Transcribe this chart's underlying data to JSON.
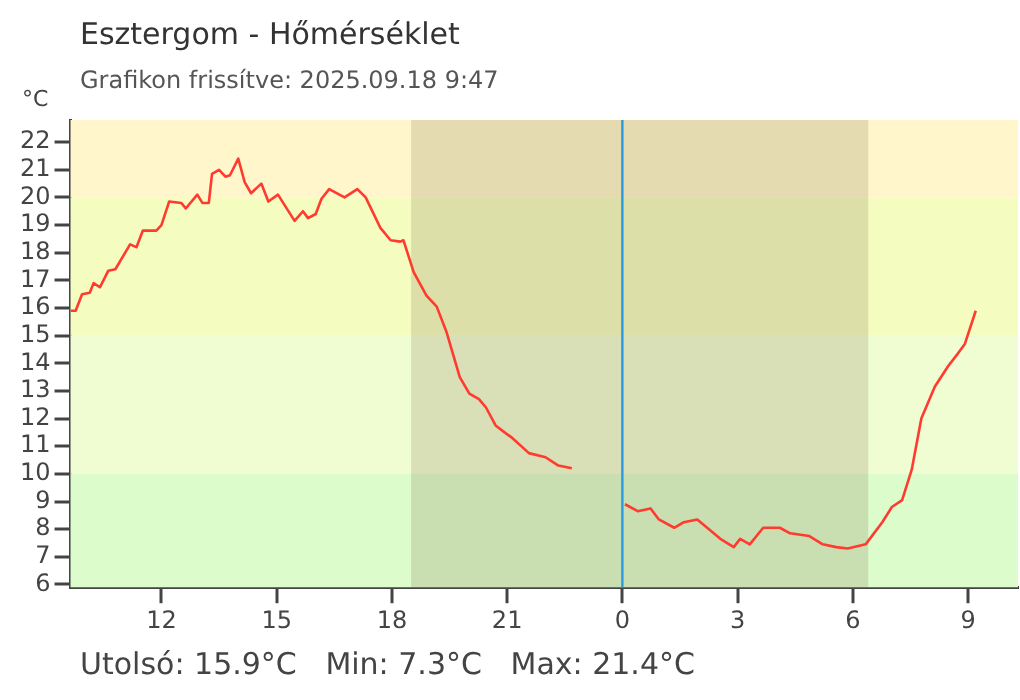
{
  "chart_data": {
    "type": "line",
    "title": "Esztergom - Hőmérséklet",
    "subtitle": "Grafikon frissítve: 2025.09.18 9:47",
    "ylabel": "°C",
    "annotations": [
      "Utolsó: 15.9°C   Min: 7.3°C   Max: 21.4°C"
    ],
    "x": [
      "2025-09-17T09:38",
      "2025-09-17T09:46",
      "2025-09-17T09:56",
      "2025-09-17T10:08",
      "2025-09-17T10:14",
      "2025-09-17T10:24",
      "2025-09-17T10:37",
      "2025-09-17T10:48",
      "2025-09-17T11:11",
      "2025-09-17T11:21",
      "2025-09-17T11:31",
      "2025-09-17T11:52",
      "2025-09-17T12:00",
      "2025-09-17T12:12",
      "2025-09-17T12:31",
      "2025-09-17T12:38",
      "2025-09-17T12:56",
      "2025-09-17T13:04",
      "2025-09-17T13:14",
      "2025-09-17T13:19",
      "2025-09-17T13:30",
      "2025-09-17T13:40",
      "2025-09-17T13:47",
      "2025-09-17T14:00",
      "2025-09-17T14:10",
      "2025-09-17T14:20",
      "2025-09-17T14:36",
      "2025-09-17T14:47",
      "2025-09-17T15:02",
      "2025-09-17T15:28",
      "2025-09-17T15:41",
      "2025-09-17T15:49",
      "2025-09-17T16:01",
      "2025-09-17T16:10",
      "2025-09-17T16:22",
      "2025-09-17T16:46",
      "2025-09-17T17:06",
      "2025-09-17T17:19",
      "2025-09-17T17:42",
      "2025-09-17T17:58",
      "2025-09-17T18:13",
      "2025-09-17T18:18",
      "2025-09-17T18:34",
      "2025-09-17T18:54",
      "2025-09-17T19:10",
      "2025-09-17T19:25",
      "2025-09-17T19:46",
      "2025-09-17T20:01",
      "2025-09-17T20:16",
      "2025-09-17T20:27",
      "2025-09-17T20:42",
      "2025-09-17T20:56",
      "2025-09-17T21:08",
      "2025-09-17T21:34",
      "2025-09-17T22:00",
      "2025-09-17T22:20",
      "2025-09-17T22:41",
      "2025-09-17T23:24",
      "2025-09-18T00:04",
      "2025-09-18T00:24",
      "2025-09-18T00:44",
      "2025-09-18T00:57",
      "2025-09-18T01:21",
      "2025-09-18T01:36",
      "2025-09-18T01:57",
      "2025-09-18T02:33",
      "2025-09-18T02:54",
      "2025-09-18T03:04",
      "2025-09-18T03:19",
      "2025-09-18T03:40",
      "2025-09-18T04:06",
      "2025-09-18T04:22",
      "2025-09-18T04:52",
      "2025-09-18T05:13",
      "2025-09-18T05:34",
      "2025-09-18T05:52",
      "2025-09-18T06:20",
      "2025-09-18T06:46",
      "2025-09-18T07:01",
      "2025-09-18T07:17",
      "2025-09-18T07:32",
      "2025-09-18T07:47",
      "2025-09-18T08:08",
      "2025-09-18T08:29",
      "2025-09-18T08:44",
      "2025-09-18T08:55",
      "2025-09-18T09:12"
    ],
    "series": [
      {
        "color": "#ff3b30",
        "values": [
          15.9,
          15.9,
          16.5,
          16.55,
          16.9,
          16.75,
          17.35,
          17.4,
          18.3,
          18.2,
          18.8,
          18.8,
          19.0,
          19.85,
          19.8,
          19.6,
          20.1,
          19.8,
          19.8,
          20.85,
          21.0,
          20.75,
          20.8,
          21.4,
          20.55,
          20.15,
          20.5,
          19.85,
          20.1,
          19.15,
          19.5,
          19.25,
          19.4,
          19.95,
          20.3,
          20.0,
          20.3,
          20.0,
          18.9,
          18.45,
          18.4,
          18.45,
          17.3,
          16.45,
          16.05,
          15.15,
          13.5,
          12.9,
          12.7,
          12.4,
          11.75,
          11.5,
          11.3,
          10.75,
          10.6,
          10.3,
          10.2,
          null,
          8.9,
          8.65,
          8.75,
          8.35,
          8.05,
          8.25,
          8.35,
          7.65,
          7.35,
          7.65,
          7.45,
          8.05,
          8.05,
          7.85,
          7.75,
          7.45,
          7.35,
          7.3,
          7.45,
          8.25,
          8.8,
          9.05,
          10.15,
          12.0,
          13.15,
          13.9,
          14.35,
          14.7,
          15.9
        ]
      }
    ],
    "xlim": [
      "2025-09-17T09:38",
      "2025-09-18T10:18"
    ],
    "xticks": [
      {
        "value": "2025-09-17T12:00",
        "label": "12"
      },
      {
        "value": "2025-09-17T15:00",
        "label": "15"
      },
      {
        "value": "2025-09-17T18:00",
        "label": "18"
      },
      {
        "value": "2025-09-17T21:00",
        "label": "21"
      },
      {
        "value": "2025-09-18T00:00",
        "label": "0"
      },
      {
        "value": "2025-09-18T03:00",
        "label": "3"
      },
      {
        "value": "2025-09-18T06:00",
        "label": "6"
      },
      {
        "value": "2025-09-18T09:00",
        "label": "9"
      }
    ],
    "ylim": [
      5.9,
      22.8
    ],
    "yticks": [
      6,
      7,
      8,
      9,
      10,
      11,
      12,
      13,
      14,
      15,
      16,
      17,
      18,
      19,
      20,
      21,
      22
    ],
    "bands": [
      {
        "axis": "y",
        "from": 20,
        "to": 22.8,
        "color": "#fff6cc"
      },
      {
        "axis": "y",
        "from": 15,
        "to": 20,
        "color": "#f5fcc0"
      },
      {
        "axis": "y",
        "from": 10,
        "to": 15,
        "color": "#f0fcd2"
      },
      {
        "axis": "y",
        "from": 5.9,
        "to": 10,
        "color": "#dcfccc"
      },
      {
        "axis": "x",
        "from": "2025-09-17T18:30",
        "to": "2025-09-18T06:24",
        "color": "#8a7a50"
      }
    ],
    "ref_lines": [
      {
        "axis": "x",
        "value": "2025-09-18T00:00",
        "color": "#2a9be0"
      }
    ],
    "grid": false,
    "legend": false,
    "marker": "none",
    "line_style": "solid"
  }
}
